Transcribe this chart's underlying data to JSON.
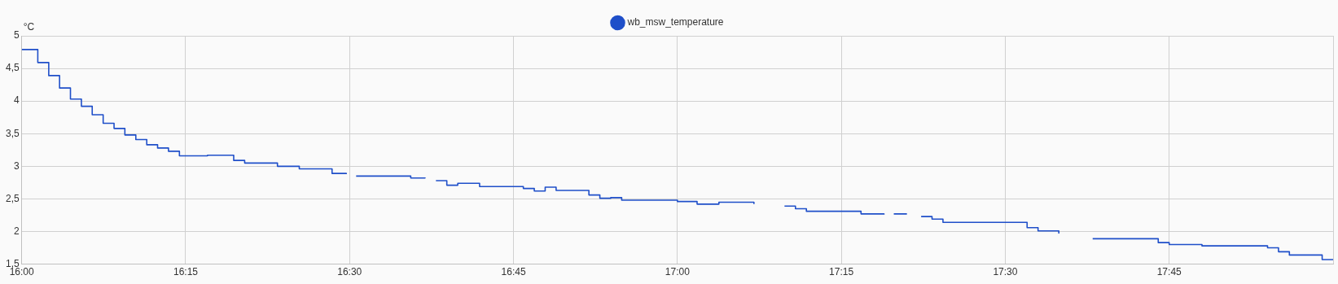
{
  "chart_data": {
    "type": "step",
    "ylabel": "°C",
    "legend": "top",
    "grid": true,
    "marker": "none",
    "line_style": "solid",
    "xlim": [
      16,
      18
    ],
    "xticks": [
      {
        "value": 16,
        "label": "16:00"
      },
      {
        "value": 16.25,
        "label": "16:15"
      },
      {
        "value": 16.5,
        "label": "16:30"
      },
      {
        "value": 16.75,
        "label": "16:45"
      },
      {
        "value": 17,
        "label": "17:00"
      },
      {
        "value": 17.25,
        "label": "17:15"
      },
      {
        "value": 17.5,
        "label": "17:30"
      },
      {
        "value": 17.75,
        "label": "17:45"
      },
      {
        "value": 18,
        "label": null
      }
    ],
    "ylim": [
      1.5,
      5
    ],
    "yticks": [
      {
        "value": 1.5,
        "label": "1,5"
      },
      2,
      {
        "value": 2.5,
        "label": "2,5"
      },
      3,
      {
        "value": 3.5,
        "label": "3,5"
      },
      4,
      {
        "value": 4.5,
        "label": "4,5"
      },
      5
    ],
    "x": [
      16,
      16.0245,
      16.0412,
      16.0577,
      16.0743,
      16.091,
      16.1075,
      16.1242,
      16.1408,
      16.1573,
      16.174,
      16.1907,
      16.2072,
      16.2238,
      16.2405,
      16.2833,
      16.3233,
      16.34,
      16.39,
      16.4233,
      16.4733,
      16.495,
      16.5017,
      16.51,
      16.5933,
      16.615,
      16.6233,
      16.6317,
      16.6483,
      16.665,
      16.6983,
      16.765,
      16.7817,
      16.7983,
      16.815,
      16.865,
      16.8817,
      16.8983,
      16.915,
      17,
      17.03,
      17.0633,
      17.1167,
      17.14,
      17.1633,
      17.18,
      17.1967,
      17.28,
      17.315,
      17.3217,
      17.33,
      17.35,
      17.36,
      17.3717,
      17.3883,
      17.405,
      17.5,
      17.5333,
      17.55,
      17.5817,
      17.6,
      17.6333,
      17.7333,
      17.75,
      17.8,
      17.9,
      17.9167,
      17.9333,
      17.9833,
      18
    ],
    "series": [
      {
        "name": "wb_msw_temperature",
        "color": "#1f4fc9",
        "values": [
          4.79,
          4.59,
          4.39,
          4.2,
          4.03,
          3.92,
          3.79,
          3.66,
          3.58,
          3.48,
          3.41,
          3.33,
          3.28,
          3.23,
          3.16,
          3.17,
          3.09,
          3.05,
          3.0,
          2.96,
          2.89,
          2.88,
          null,
          2.85,
          2.82,
          2.83,
          null,
          2.78,
          2.71,
          2.74,
          2.69,
          2.66,
          2.62,
          2.68,
          2.63,
          2.56,
          2.51,
          2.52,
          2.48,
          2.46,
          2.42,
          2.45,
          2.42,
          null,
          2.39,
          2.35,
          2.31,
          2.27,
          2.26,
          null,
          2.27,
          2.27,
          null,
          2.23,
          2.19,
          2.14,
          2.14,
          2.06,
          2.01,
          1.97,
          null,
          1.89,
          1.83,
          1.8,
          1.78,
          1.75,
          1.69,
          1.64,
          1.57,
          1.57
        ]
      }
    ]
  }
}
